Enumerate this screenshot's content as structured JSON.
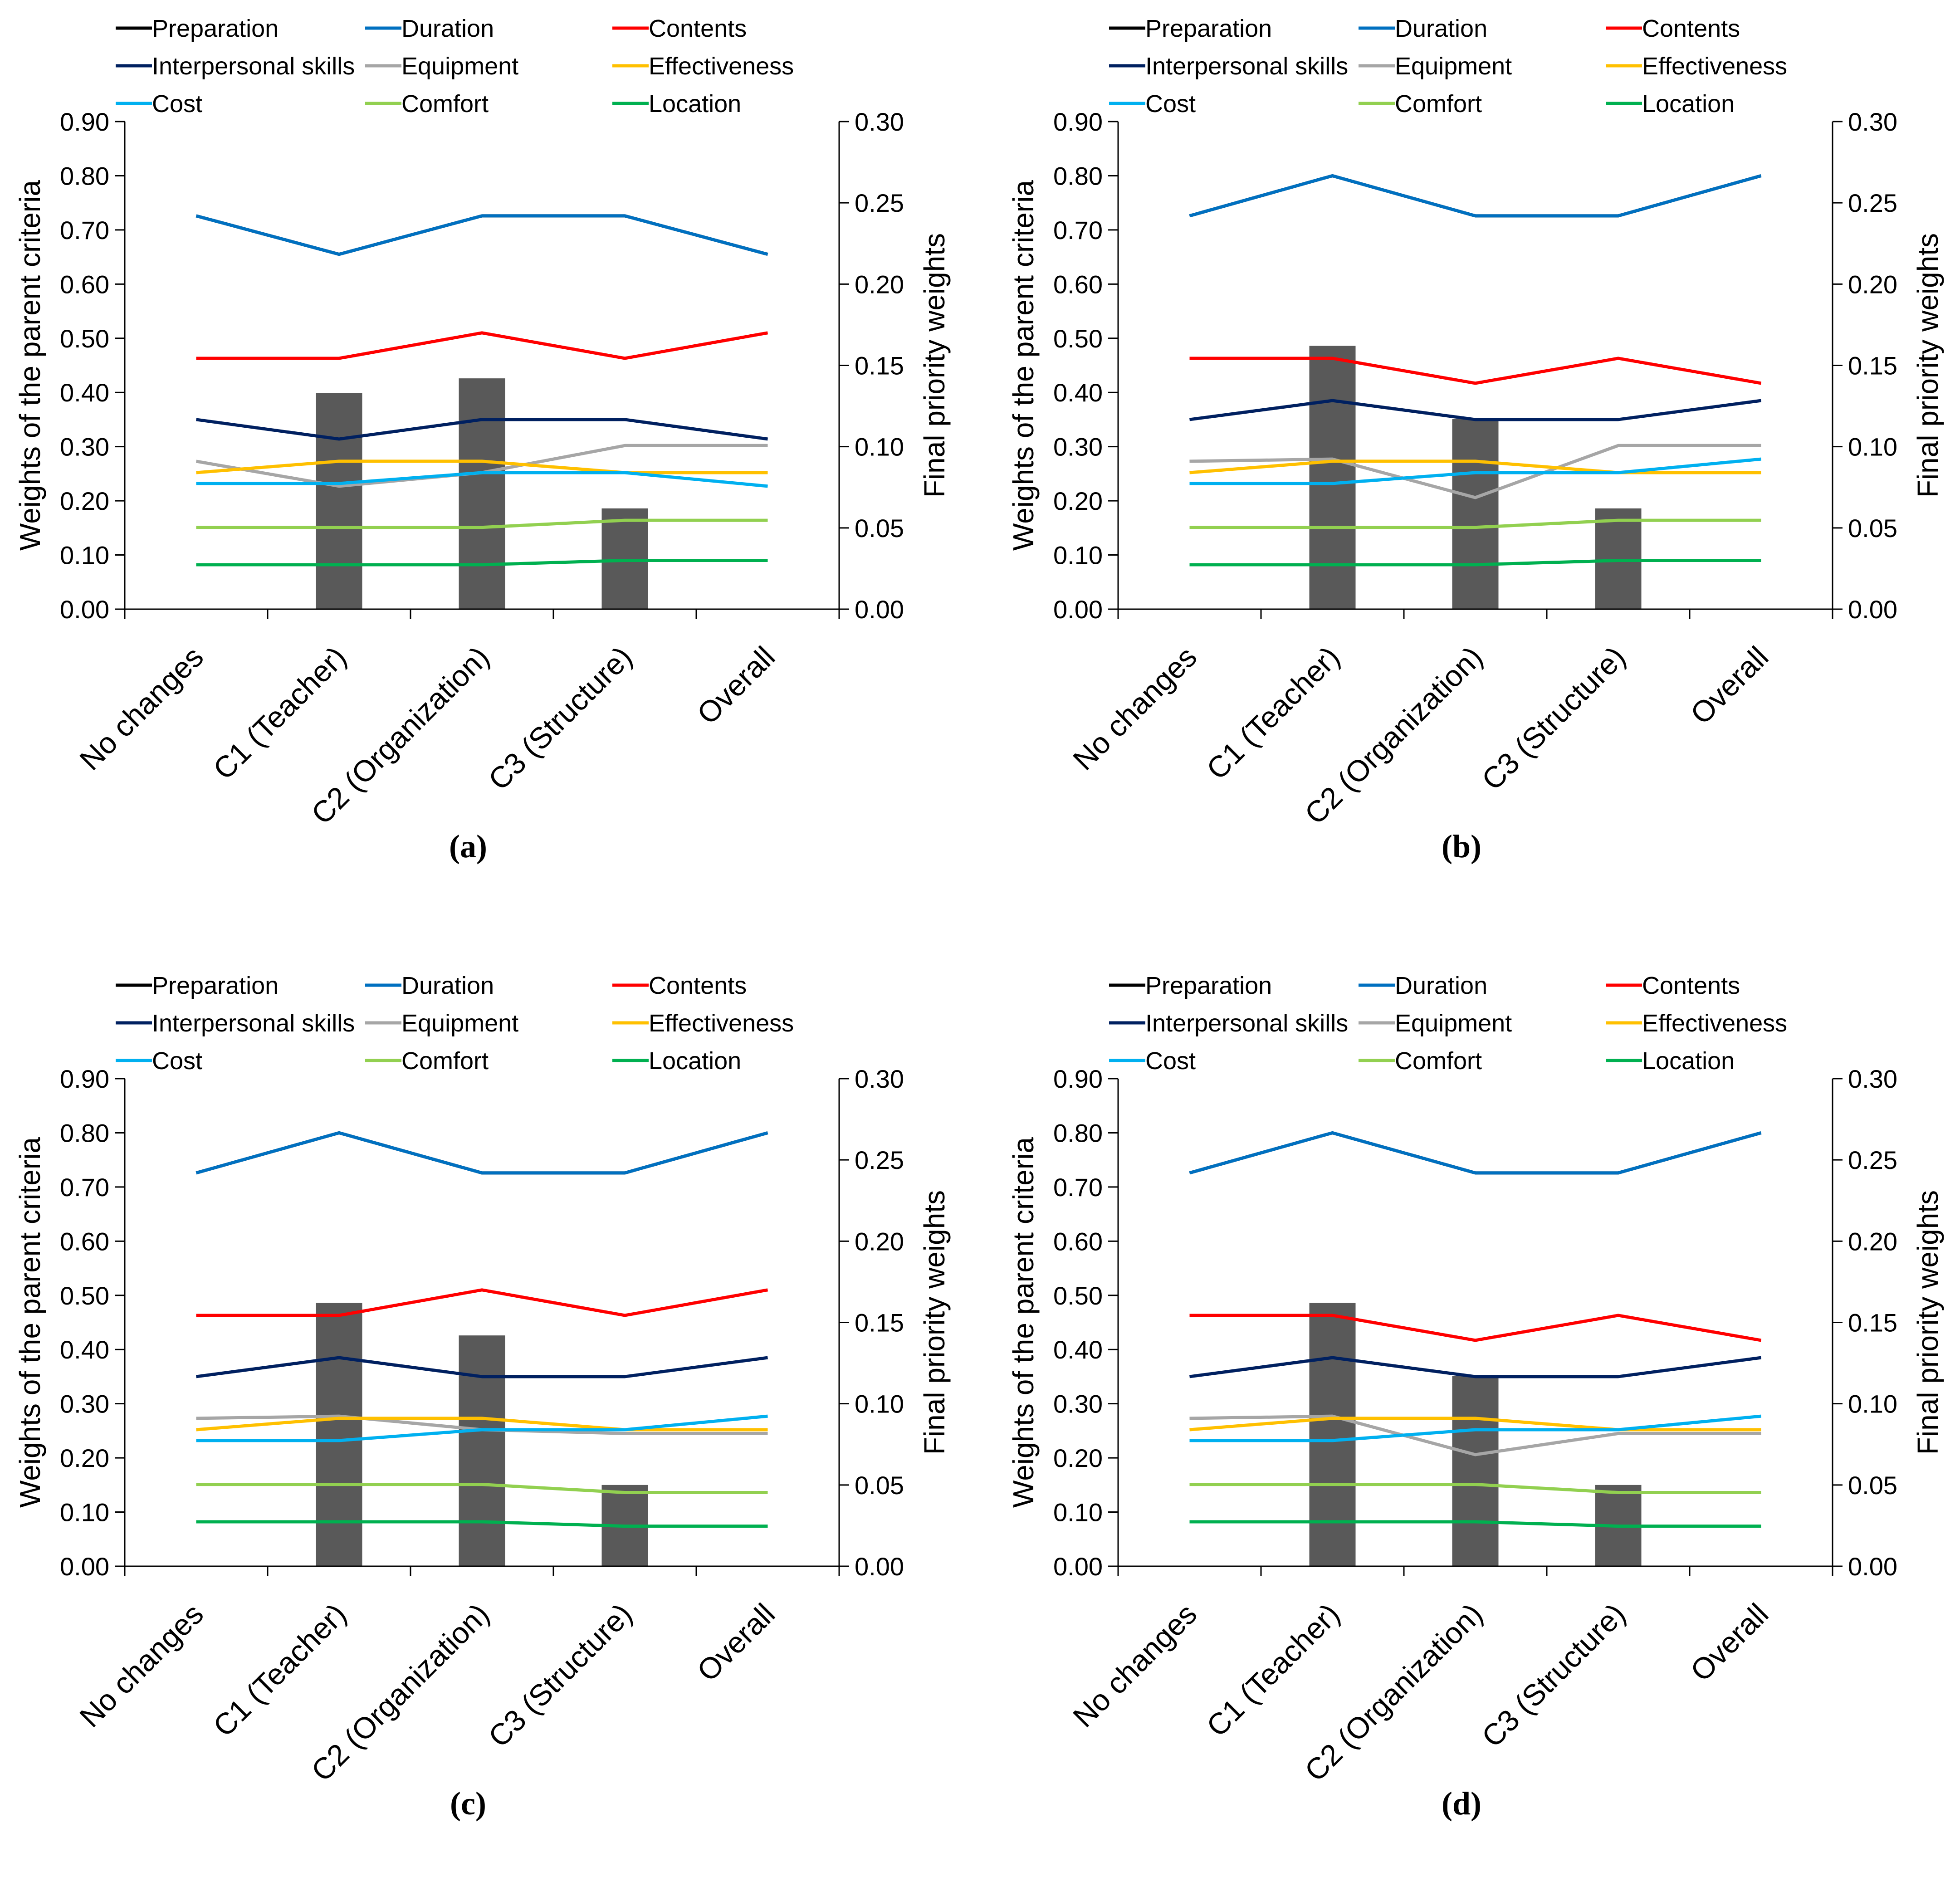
{
  "figure": {
    "panel_labels": [
      "(a)",
      "(b)",
      "(c)",
      "(d)"
    ]
  },
  "chart_data": [
    {
      "type": "bar",
      "panel": "(a)",
      "categories": [
        "No changes",
        "C1 (Teacher)",
        "C2 (Organization)",
        "C3 (Structure)",
        "Overall"
      ],
      "ylabel": "Weights of the parent criteria",
      "y2label": "Final priority weights",
      "ylim": [
        0,
        0.9
      ],
      "y2lim": [
        0,
        0.3
      ],
      "yticks": [
        "0.00",
        "0.10",
        "0.20",
        "0.30",
        "0.40",
        "0.50",
        "0.60",
        "0.70",
        "0.80",
        "0.90"
      ],
      "y2ticks": [
        "0.00",
        "0.05",
        "0.10",
        "0.15",
        "0.20",
        "0.25",
        "0.30"
      ],
      "legend": [
        "Preparation",
        "Duration",
        "Contents",
        "Interpersonal skills",
        "Equipment",
        "Effectiveness",
        "Cost",
        "Comfort",
        "Location"
      ],
      "bars": [
        0,
        0.133,
        0.142,
        0.062,
        0
      ],
      "series": [
        {
          "name": "Preparation",
          "color": "#000000",
          "values": [
            0.726,
            0.655,
            0.726,
            0.726,
            0.655
          ]
        },
        {
          "name": "Duration",
          "color": "#0070C0",
          "values": [
            0.726,
            0.655,
            0.726,
            0.726,
            0.655
          ]
        },
        {
          "name": "Contents",
          "color": "#FF0000",
          "values": [
            0.463,
            0.463,
            0.51,
            0.463,
            0.51
          ]
        },
        {
          "name": "Interpersonal skills",
          "color": "#002060",
          "values": [
            0.35,
            0.314,
            0.35,
            0.35,
            0.314
          ]
        },
        {
          "name": "Equipment",
          "color": "#A6A6A6",
          "values": [
            0.273,
            0.227,
            0.252,
            0.302,
            0.302
          ]
        },
        {
          "name": "Effectiveness",
          "color": "#FFC000",
          "values": [
            0.252,
            0.273,
            0.273,
            0.252,
            0.252
          ]
        },
        {
          "name": "Cost",
          "color": "#00B0F0",
          "values": [
            0.232,
            0.232,
            0.252,
            0.252,
            0.227
          ]
        },
        {
          "name": "Comfort",
          "color": "#92D050",
          "values": [
            0.151,
            0.151,
            0.151,
            0.164,
            0.164
          ]
        },
        {
          "name": "Location",
          "color": "#00B050",
          "values": [
            0.082,
            0.082,
            0.082,
            0.09,
            0.09
          ]
        }
      ]
    },
    {
      "type": "bar",
      "panel": "(b)",
      "categories": [
        "No changes",
        "C1 (Teacher)",
        "C2 (Organization)",
        "C3 (Structure)",
        "Overall"
      ],
      "ylabel": "Weights of the parent criteria",
      "y2label": "Final priority weights",
      "ylim": [
        0,
        0.9
      ],
      "y2lim": [
        0,
        0.3
      ],
      "yticks": [
        "0.00",
        "0.10",
        "0.20",
        "0.30",
        "0.40",
        "0.50",
        "0.60",
        "0.70",
        "0.80",
        "0.90"
      ],
      "y2ticks": [
        "0.00",
        "0.05",
        "0.10",
        "0.15",
        "0.20",
        "0.25",
        "0.30"
      ],
      "legend": [
        "Preparation",
        "Duration",
        "Contents",
        "Interpersonal skills",
        "Equipment",
        "Effectiveness",
        "Cost",
        "Comfort",
        "Location"
      ],
      "bars": [
        0,
        0.162,
        0.117,
        0.062,
        0
      ],
      "series": [
        {
          "name": "Preparation",
          "color": "#000000",
          "values": [
            0.726,
            0.8,
            0.726,
            0.726,
            0.8
          ]
        },
        {
          "name": "Duration",
          "color": "#0070C0",
          "values": [
            0.726,
            0.8,
            0.726,
            0.726,
            0.8
          ]
        },
        {
          "name": "Contents",
          "color": "#FF0000",
          "values": [
            0.463,
            0.463,
            0.417,
            0.463,
            0.417
          ]
        },
        {
          "name": "Interpersonal skills",
          "color": "#002060",
          "values": [
            0.35,
            0.385,
            0.35,
            0.35,
            0.385
          ]
        },
        {
          "name": "Equipment",
          "color": "#A6A6A6",
          "values": [
            0.273,
            0.277,
            0.206,
            0.302,
            0.302
          ]
        },
        {
          "name": "Effectiveness",
          "color": "#FFC000",
          "values": [
            0.252,
            0.273,
            0.273,
            0.252,
            0.252
          ]
        },
        {
          "name": "Cost",
          "color": "#00B0F0",
          "values": [
            0.232,
            0.232,
            0.252,
            0.252,
            0.277
          ]
        },
        {
          "name": "Comfort",
          "color": "#92D050",
          "values": [
            0.151,
            0.151,
            0.151,
            0.164,
            0.164
          ]
        },
        {
          "name": "Location",
          "color": "#00B050",
          "values": [
            0.082,
            0.082,
            0.082,
            0.09,
            0.09
          ]
        }
      ]
    },
    {
      "type": "bar",
      "panel": "(c)",
      "categories": [
        "No changes",
        "C1 (Teacher)",
        "C2 (Organization)",
        "C3 (Structure)",
        "Overall"
      ],
      "ylabel": "Weights of the parent criteria",
      "y2label": "Final priority weights",
      "ylim": [
        0,
        0.9
      ],
      "y2lim": [
        0,
        0.3
      ],
      "yticks": [
        "0.00",
        "0.10",
        "0.20",
        "0.30",
        "0.40",
        "0.50",
        "0.60",
        "0.70",
        "0.80",
        "0.90"
      ],
      "y2ticks": [
        "0.00",
        "0.05",
        "0.10",
        "0.15",
        "0.20",
        "0.25",
        "0.30"
      ],
      "legend": [
        "Preparation",
        "Duration",
        "Contents",
        "Interpersonal skills",
        "Equipment",
        "Effectiveness",
        "Cost",
        "Comfort",
        "Location"
      ],
      "bars": [
        0,
        0.162,
        0.142,
        0.05,
        0
      ],
      "series": [
        {
          "name": "Preparation",
          "color": "#000000",
          "values": [
            0.726,
            0.8,
            0.726,
            0.726,
            0.8
          ]
        },
        {
          "name": "Duration",
          "color": "#0070C0",
          "values": [
            0.726,
            0.8,
            0.726,
            0.726,
            0.8
          ]
        },
        {
          "name": "Contents",
          "color": "#FF0000",
          "values": [
            0.463,
            0.463,
            0.51,
            0.463,
            0.51
          ]
        },
        {
          "name": "Interpersonal skills",
          "color": "#002060",
          "values": [
            0.35,
            0.385,
            0.35,
            0.35,
            0.385
          ]
        },
        {
          "name": "Equipment",
          "color": "#A6A6A6",
          "values": [
            0.273,
            0.277,
            0.252,
            0.245,
            0.245
          ]
        },
        {
          "name": "Effectiveness",
          "color": "#FFC000",
          "values": [
            0.252,
            0.273,
            0.273,
            0.252,
            0.252
          ]
        },
        {
          "name": "Cost",
          "color": "#00B0F0",
          "values": [
            0.232,
            0.232,
            0.252,
            0.252,
            0.277
          ]
        },
        {
          "name": "Comfort",
          "color": "#92D050",
          "values": [
            0.151,
            0.151,
            0.151,
            0.136,
            0.136
          ]
        },
        {
          "name": "Location",
          "color": "#00B050",
          "values": [
            0.082,
            0.082,
            0.082,
            0.074,
            0.074
          ]
        }
      ]
    },
    {
      "type": "bar",
      "panel": "(d)",
      "categories": [
        "No changes",
        "C1 (Teacher)",
        "C2 (Organization)",
        "C3 (Structure)",
        "Overall"
      ],
      "ylabel": "Weights of the parent criteria",
      "y2label": "Final priority weights",
      "ylim": [
        0,
        0.9
      ],
      "y2lim": [
        0,
        0.3
      ],
      "yticks": [
        "0.00",
        "0.10",
        "0.20",
        "0.30",
        "0.40",
        "0.50",
        "0.60",
        "0.70",
        "0.80",
        "0.90"
      ],
      "y2ticks": [
        "0.00",
        "0.05",
        "0.10",
        "0.15",
        "0.20",
        "0.25",
        "0.30"
      ],
      "legend": [
        "Preparation",
        "Duration",
        "Contents",
        "Interpersonal skills",
        "Equipment",
        "Effectiveness",
        "Cost",
        "Comfort",
        "Location"
      ],
      "bars": [
        0,
        0.162,
        0.117,
        0.05,
        0
      ],
      "series": [
        {
          "name": "Preparation",
          "color": "#000000",
          "values": [
            0.726,
            0.8,
            0.726,
            0.726,
            0.8
          ]
        },
        {
          "name": "Duration",
          "color": "#0070C0",
          "values": [
            0.726,
            0.8,
            0.726,
            0.726,
            0.8
          ]
        },
        {
          "name": "Contents",
          "color": "#FF0000",
          "values": [
            0.463,
            0.463,
            0.417,
            0.463,
            0.417
          ]
        },
        {
          "name": "Interpersonal skills",
          "color": "#002060",
          "values": [
            0.35,
            0.385,
            0.35,
            0.35,
            0.385
          ]
        },
        {
          "name": "Equipment",
          "color": "#A6A6A6",
          "values": [
            0.273,
            0.277,
            0.206,
            0.245,
            0.245
          ]
        },
        {
          "name": "Effectiveness",
          "color": "#FFC000",
          "values": [
            0.252,
            0.273,
            0.273,
            0.252,
            0.252
          ]
        },
        {
          "name": "Cost",
          "color": "#00B0F0",
          "values": [
            0.232,
            0.232,
            0.252,
            0.252,
            0.277
          ]
        },
        {
          "name": "Comfort",
          "color": "#92D050",
          "values": [
            0.151,
            0.151,
            0.151,
            0.136,
            0.136
          ]
        },
        {
          "name": "Location",
          "color": "#00B050",
          "values": [
            0.082,
            0.082,
            0.082,
            0.074,
            0.074
          ]
        }
      ]
    }
  ]
}
